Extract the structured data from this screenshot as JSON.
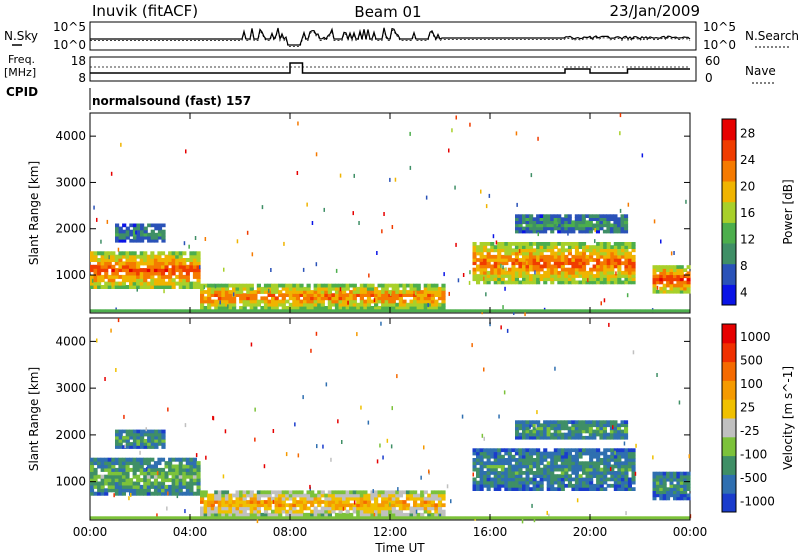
{
  "header": {
    "station": "Inuvik (fitACF)",
    "beam": "Beam 01",
    "date": "23/Jan/2009"
  },
  "noise_panel": {
    "left_label": "N.Sky",
    "right_label": "N.Search",
    "left_ticks": [
      "10^5",
      "10^0"
    ],
    "right_ticks": [
      "10^5",
      "10^0"
    ]
  },
  "freq_panel": {
    "left_label_1": "Freq.",
    "left_label_2": "[MHz]",
    "right_label": "Nave",
    "left_ticks": [
      "18",
      "8"
    ],
    "right_ticks": [
      "60",
      "0"
    ]
  },
  "cpid": {
    "label": "CPID",
    "mode": "normalsound (fast) 157"
  },
  "colors": {
    "power_scale": [
      "#0a14e6",
      "#2a52b8",
      "#3f8f66",
      "#4cae4c",
      "#a8d02a",
      "#f0b400",
      "#f57a00",
      "#f03c00",
      "#e60000"
    ],
    "velocity_scale": [
      "#1a3ccc",
      "#2f6fb0",
      "#3f8f66",
      "#7cc23a",
      "#c0c0c0",
      "#f0c000",
      "#f59a00",
      "#f56a00",
      "#f03000",
      "#e60000"
    ]
  },
  "chart_data": [
    {
      "type": "heatmap",
      "name": "power",
      "ylabel": "Slant Range [km]",
      "xlabel": "",
      "x_ticks": [
        "00:00",
        "04:00",
        "08:00",
        "12:00",
        "16:00",
        "20:00",
        "00:00"
      ],
      "y_ticks": [
        "1000",
        "2000",
        "3000",
        "4000"
      ],
      "ylim": [
        180,
        4500
      ],
      "colorbar_label": "Power [dB]",
      "colorbar_ticks": [
        "28",
        "24",
        "20",
        "16",
        "12",
        "8",
        "4"
      ],
      "regions": [
        {
          "t": [
            0.0,
            4.4
          ],
          "r": [
            700,
            1500
          ],
          "level": 0.85
        },
        {
          "t": [
            1.0,
            3.0
          ],
          "r": [
            1700,
            2100
          ],
          "level": 0.3
        },
        {
          "t": [
            4.4,
            14.2
          ],
          "r": [
            250,
            800
          ],
          "level": 0.8
        },
        {
          "t": [
            15.3,
            21.8
          ],
          "r": [
            800,
            1700
          ],
          "level": 0.8
        },
        {
          "t": [
            17.0,
            21.5
          ],
          "r": [
            1900,
            2300
          ],
          "level": 0.35
        },
        {
          "t": [
            22.5,
            24.0
          ],
          "r": [
            600,
            1200
          ],
          "level": 0.9
        }
      ]
    },
    {
      "type": "heatmap",
      "name": "velocity",
      "ylabel": "Slant Range [km]",
      "xlabel": "Time UT",
      "x_ticks": [
        "00:00",
        "04:00",
        "08:00",
        "12:00",
        "16:00",
        "20:00",
        "00:00"
      ],
      "y_ticks": [
        "1000",
        "2000",
        "3000",
        "4000"
      ],
      "ylim": [
        180,
        4500
      ],
      "colorbar_label": "Velocity [m s^-1]",
      "colorbar_ticks": [
        "1000",
        "500",
        "100",
        "25",
        "-25",
        "-100",
        "-500",
        "-1000"
      ],
      "regions": [
        {
          "t": [
            0.0,
            4.4
          ],
          "r": [
            700,
            1500
          ],
          "level": 0.35
        },
        {
          "t": [
            1.0,
            3.0
          ],
          "r": [
            1700,
            2100
          ],
          "level": 0.3
        },
        {
          "t": [
            4.4,
            14.2
          ],
          "r": [
            250,
            800
          ],
          "level": 0.7
        },
        {
          "t": [
            15.3,
            21.8
          ],
          "r": [
            800,
            1700
          ],
          "level": 0.25
        },
        {
          "t": [
            17.0,
            21.5
          ],
          "r": [
            1900,
            2300
          ],
          "level": 0.3
        },
        {
          "t": [
            22.5,
            24.0
          ],
          "r": [
            600,
            1200
          ],
          "level": 0.25
        }
      ]
    }
  ]
}
